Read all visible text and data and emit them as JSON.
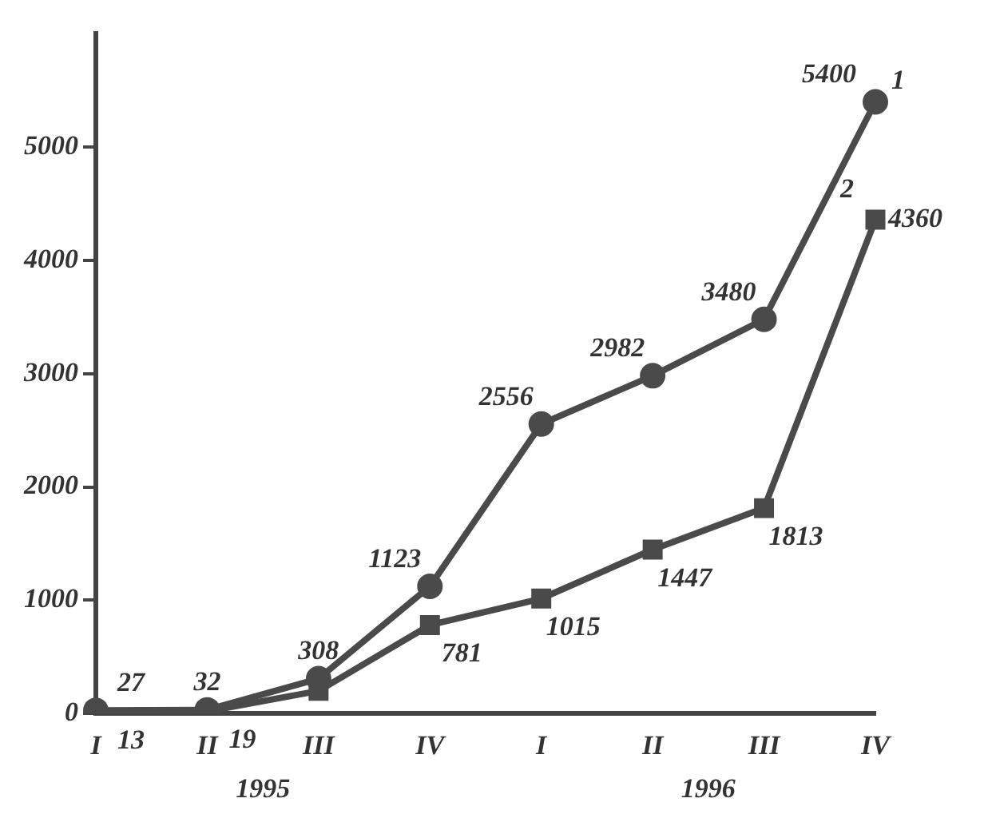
{
  "chart_data": {
    "type": "line",
    "categories": [
      "I",
      "II",
      "III",
      "IV",
      "I",
      "II",
      "III",
      "IV"
    ],
    "series": [
      {
        "name": "1",
        "color": "#4a4a4a",
        "marker": "circle",
        "values": [
          27,
          32,
          308,
          1123,
          2556,
          2982,
          3480,
          5400
        ],
        "value_labels": [
          "27",
          "32",
          "308",
          "1123",
          "2556",
          "2982",
          "3480",
          "5400"
        ]
      },
      {
        "name": "2",
        "color": "#4a4a4a",
        "marker": "square",
        "values": [
          13,
          19,
          200,
          781,
          1015,
          1447,
          1813,
          4360
        ],
        "value_labels": [
          "13",
          "19",
          null,
          "781",
          "1015",
          "1447",
          "1813",
          "4360"
        ]
      }
    ],
    "ylim": [
      0,
      6000
    ],
    "yticks": [
      0,
      1000,
      2000,
      3000,
      4000,
      5000
    ],
    "grid": false,
    "legend": false,
    "annotations": [
      "1995",
      "1996"
    ]
  }
}
